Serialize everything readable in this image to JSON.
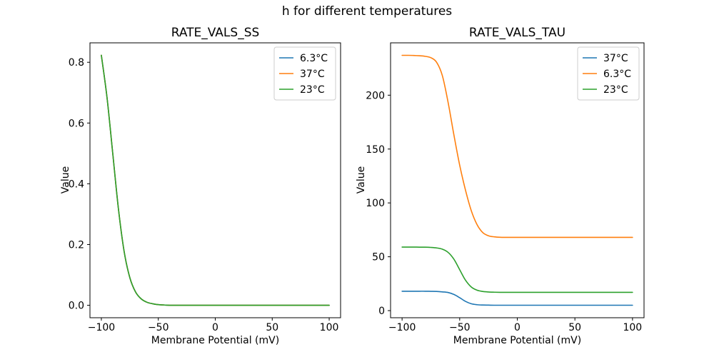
{
  "figure": {
    "suptitle": "h for different temperatures",
    "background_color": "#ffffff",
    "text_color": "#000000"
  },
  "chart_data": [
    {
      "type": "line",
      "title": "RATE_VALS_SS",
      "xlabel": "Membrane Potential (mV)",
      "ylabel": "Value",
      "xlim": [
        -110,
        110
      ],
      "ylim": [
        -0.041,
        0.864
      ],
      "grid": false,
      "legend_position": "upper right",
      "xticks": [
        -100,
        -50,
        0,
        50,
        100
      ],
      "xtick_labels": [
        "−100",
        "−50",
        "0",
        "50",
        "100"
      ],
      "yticks": [
        0.0,
        0.2,
        0.4,
        0.6,
        0.8
      ],
      "ytick_labels": [
        "0.0",
        "0.2",
        "0.4",
        "0.6",
        "0.8"
      ],
      "x": [
        -100,
        -95,
        -90,
        -85,
        -80,
        -75,
        -70,
        -65,
        -60,
        -55,
        -50,
        -45,
        -40,
        -35,
        -30,
        -25,
        -20,
        -15,
        -10,
        -5,
        0,
        5,
        10,
        15,
        20,
        25,
        30,
        35,
        40,
        45,
        50,
        55,
        60,
        65,
        70,
        75,
        80,
        85,
        90,
        95,
        100
      ],
      "note": "all three temperature curves overlap exactly; green (23°C, drawn last) is visible",
      "series": [
        {
          "name": "6.3°C",
          "color": "#1f77b4",
          "values": [
            0.823,
            0.683,
            0.5,
            0.317,
            0.177,
            0.091,
            0.044,
            0.021,
            0.01,
            0.005,
            0.002,
            0.001,
            0,
            0,
            0,
            0,
            0,
            0,
            0,
            0,
            0,
            0,
            0,
            0,
            0,
            0,
            0,
            0,
            0,
            0,
            0,
            0,
            0,
            0,
            0,
            0,
            0,
            0,
            0,
            0,
            0
          ]
        },
        {
          "name": "37°C",
          "color": "#ff7f0e",
          "values": [
            0.823,
            0.683,
            0.5,
            0.317,
            0.177,
            0.091,
            0.044,
            0.021,
            0.01,
            0.005,
            0.002,
            0.001,
            0,
            0,
            0,
            0,
            0,
            0,
            0,
            0,
            0,
            0,
            0,
            0,
            0,
            0,
            0,
            0,
            0,
            0,
            0,
            0,
            0,
            0,
            0,
            0,
            0,
            0,
            0,
            0,
            0
          ]
        },
        {
          "name": "23°C",
          "color": "#2ca02c",
          "values": [
            0.823,
            0.683,
            0.5,
            0.317,
            0.177,
            0.091,
            0.044,
            0.021,
            0.01,
            0.005,
            0.002,
            0.001,
            0,
            0,
            0,
            0,
            0,
            0,
            0,
            0,
            0,
            0,
            0,
            0,
            0,
            0,
            0,
            0,
            0,
            0,
            0,
            0,
            0,
            0,
            0,
            0,
            0,
            0,
            0,
            0,
            0
          ]
        }
      ]
    },
    {
      "type": "line",
      "title": "RATE_VALS_TAU",
      "xlabel": "Membrane Potential (mV)",
      "ylabel": "Value",
      "xlim": [
        -110,
        110
      ],
      "ylim": [
        -6.6,
        248.6
      ],
      "grid": false,
      "legend_position": "upper right",
      "xticks": [
        -100,
        -50,
        0,
        50,
        100
      ],
      "xtick_labels": [
        "−100",
        "−50",
        "0",
        "50",
        "100"
      ],
      "yticks": [
        0,
        50,
        100,
        150,
        200
      ],
      "ytick_labels": [
        "0",
        "50",
        "100",
        "150",
        "200"
      ],
      "x": [
        -100,
        -95,
        -90,
        -85,
        -80,
        -75,
        -70,
        -65,
        -60,
        -55,
        -50,
        -45,
        -40,
        -35,
        -30,
        -25,
        -20,
        -15,
        -10,
        -5,
        0,
        5,
        10,
        15,
        20,
        25,
        30,
        35,
        40,
        45,
        50,
        55,
        60,
        65,
        70,
        75,
        80,
        85,
        90,
        95,
        100
      ],
      "series": [
        {
          "name": "37°C",
          "color": "#1f77b4",
          "values": [
            18,
            18,
            18,
            18,
            18,
            17.9,
            17.8,
            17.4,
            16.8,
            15,
            12,
            8.6,
            6.4,
            5.5,
            5.2,
            5.1,
            5,
            5,
            5,
            5,
            5,
            5,
            5,
            5,
            5,
            5,
            5,
            5,
            5,
            5,
            5,
            5,
            5,
            5,
            5,
            5,
            5,
            5,
            5,
            5,
            5
          ]
        },
        {
          "name": "6.3°C",
          "color": "#ff7f0e",
          "values": [
            237,
            237,
            236.9,
            236.6,
            236.1,
            234.8,
            230.5,
            218,
            193,
            163,
            135,
            112,
            93,
            80,
            72.5,
            69.5,
            68.5,
            68.1,
            68,
            68,
            68,
            68,
            68,
            68,
            68,
            68,
            68,
            68,
            68,
            68,
            68,
            68,
            68,
            68,
            68,
            68,
            68,
            68,
            68,
            68,
            68
          ]
        },
        {
          "name": "23°C",
          "color": "#2ca02c",
          "values": [
            59,
            59,
            59,
            58.9,
            58.9,
            58.7,
            58.2,
            57,
            54,
            47.7,
            38,
            28.3,
            22,
            19,
            17.8,
            17.3,
            17.1,
            17,
            17,
            17,
            17,
            17,
            17,
            17,
            17,
            17,
            17,
            17,
            17,
            17,
            17,
            17,
            17,
            17,
            17,
            17,
            17,
            17,
            17,
            17,
            17
          ]
        }
      ]
    }
  ]
}
